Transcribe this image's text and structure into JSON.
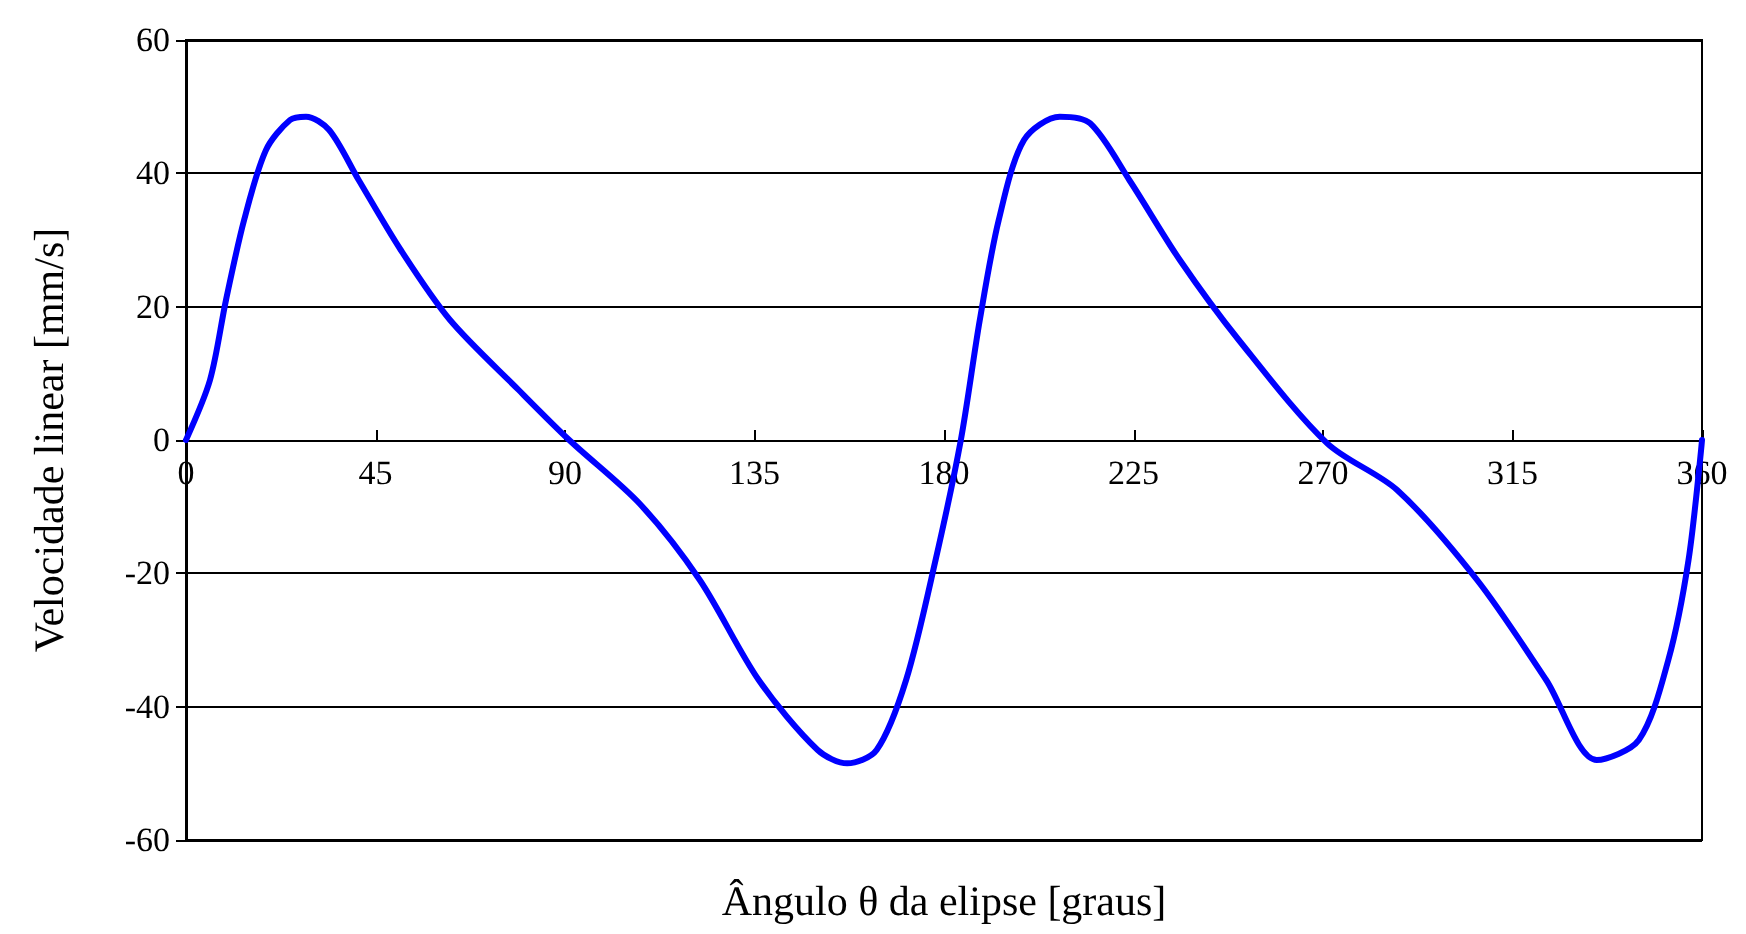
{
  "chart_data": {
    "type": "line",
    "xlabel": "Ângulo θ da elipse [graus]",
    "ylabel": "Velocidade linear [mm/s]",
    "xlim": [
      0,
      360
    ],
    "xticks": [
      0,
      45,
      90,
      135,
      180,
      225,
      270,
      315,
      360
    ],
    "ylim": [
      -60,
      60
    ],
    "yticks": [
      -60,
      -40,
      -20,
      0,
      20,
      40,
      60
    ],
    "grid": "y",
    "marker": "none",
    "line_style": "solid",
    "series": [
      {
        "color": "#0000ff",
        "x": [
          0,
          5.7,
          9.5,
          13.8,
          19,
          24.7,
          28.5,
          34,
          41,
          51,
          62.7,
          79,
          91,
          107.8,
          122,
          136,
          150,
          157,
          164,
          171,
          178,
          184,
          188.5,
          193,
          199,
          207.5,
          214.7,
          224,
          236,
          250,
          271,
          287.6,
          306.6,
          323,
          335,
          345,
          352,
          356.8,
          360
        ],
        "values": [
          0,
          9,
          21,
          33,
          43.5,
          48,
          48.5,
          46.5,
          39,
          28.5,
          18,
          7.5,
          0,
          -9.6,
          -21,
          -36,
          -46.5,
          -48.5,
          -46.5,
          -36,
          -18,
          0,
          18,
          33,
          45,
          48.5,
          47.5,
          39,
          27,
          15,
          -0.5,
          -7.5,
          -21,
          -36,
          -48,
          -45,
          -33,
          -18,
          0
        ]
      }
    ]
  }
}
